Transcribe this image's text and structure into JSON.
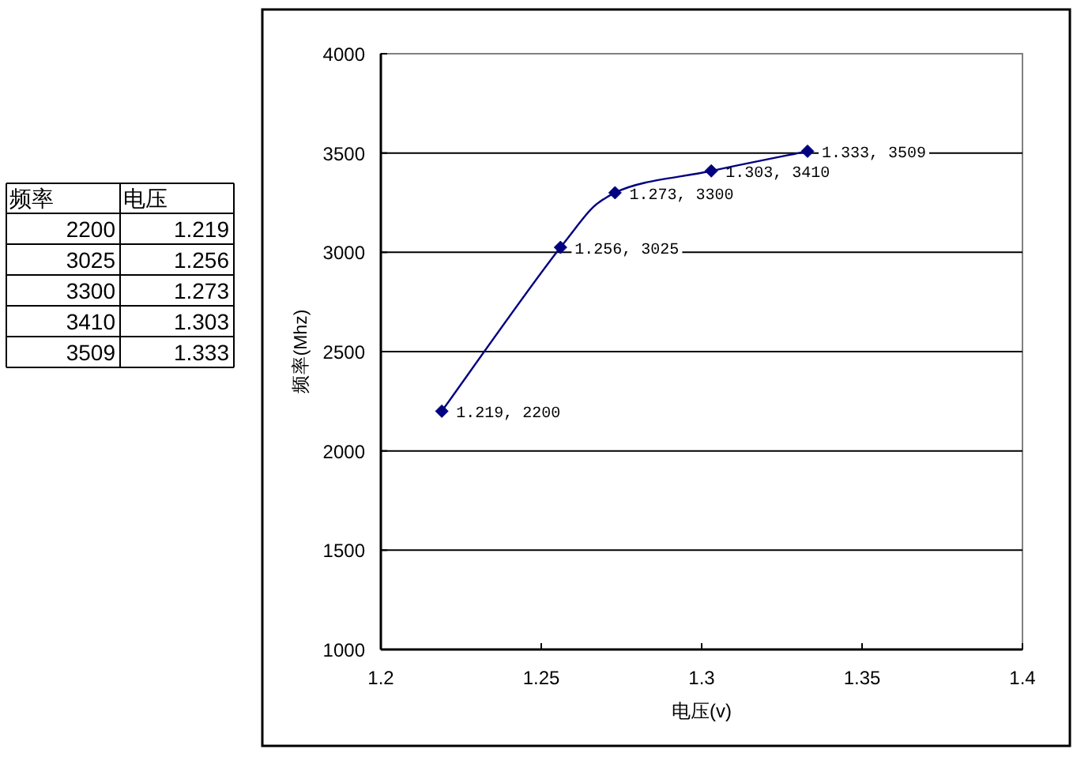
{
  "chart_data": {
    "type": "line",
    "xlabel": "电压(v)",
    "ylabel": "频率(Mhz)",
    "annotations": [
      "频率",
      "电压",
      "2200",
      "1.219",
      "3025",
      "1.256",
      "3300",
      "1.273",
      "3410",
      "1.303",
      "3509",
      "1.333"
    ],
    "x": [
      1.219,
      1.256,
      1.273,
      1.303,
      1.333
    ],
    "values": [
      2200,
      3025,
      3300,
      3410,
      3509
    ],
    "color": "#000080",
    "value_labels": [
      "1.219, 2200",
      "1.256, 3025",
      "1.273, 3300",
      "1.303, 3410",
      "1.333, 3509"
    ],
    "xlim": [
      1.2,
      1.4
    ],
    "xticks": [
      1.2,
      1.25,
      1.3,
      1.35,
      1.4
    ],
    "ylim": [
      1000,
      4000
    ],
    "yticks": [
      1000,
      1500,
      2000,
      2500,
      3000,
      3500,
      4000
    ],
    "grid": "y",
    "marker": "diamond",
    "line_style": "solid"
  }
}
